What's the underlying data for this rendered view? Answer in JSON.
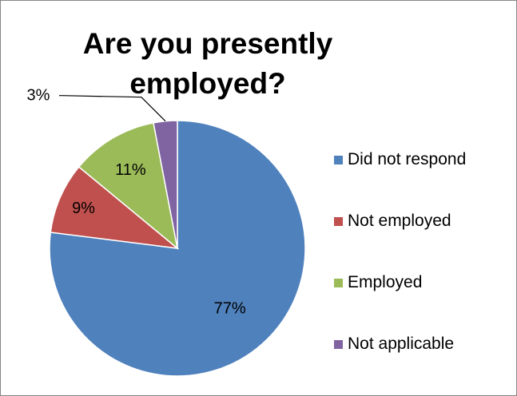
{
  "chart_data": {
    "type": "pie",
    "title": "Are you presently employed?",
    "title_lines": [
      "Are you presently",
      "employed?"
    ],
    "slices": [
      {
        "label": "Did not respond",
        "value": 77,
        "data_label": "77%",
        "color": "#4F81BD"
      },
      {
        "label": "Not employed",
        "value": 9,
        "data_label": "9%",
        "color": "#C0504D"
      },
      {
        "label": "Employed",
        "value": 11,
        "data_label": "11%",
        "color": "#9BBB59"
      },
      {
        "label": "Not applicable",
        "value": 3,
        "data_label": "3%",
        "color": "#8064A2"
      }
    ],
    "legend_position": "right",
    "start_angle": "12 o'clock",
    "direction": "clockwise"
  }
}
